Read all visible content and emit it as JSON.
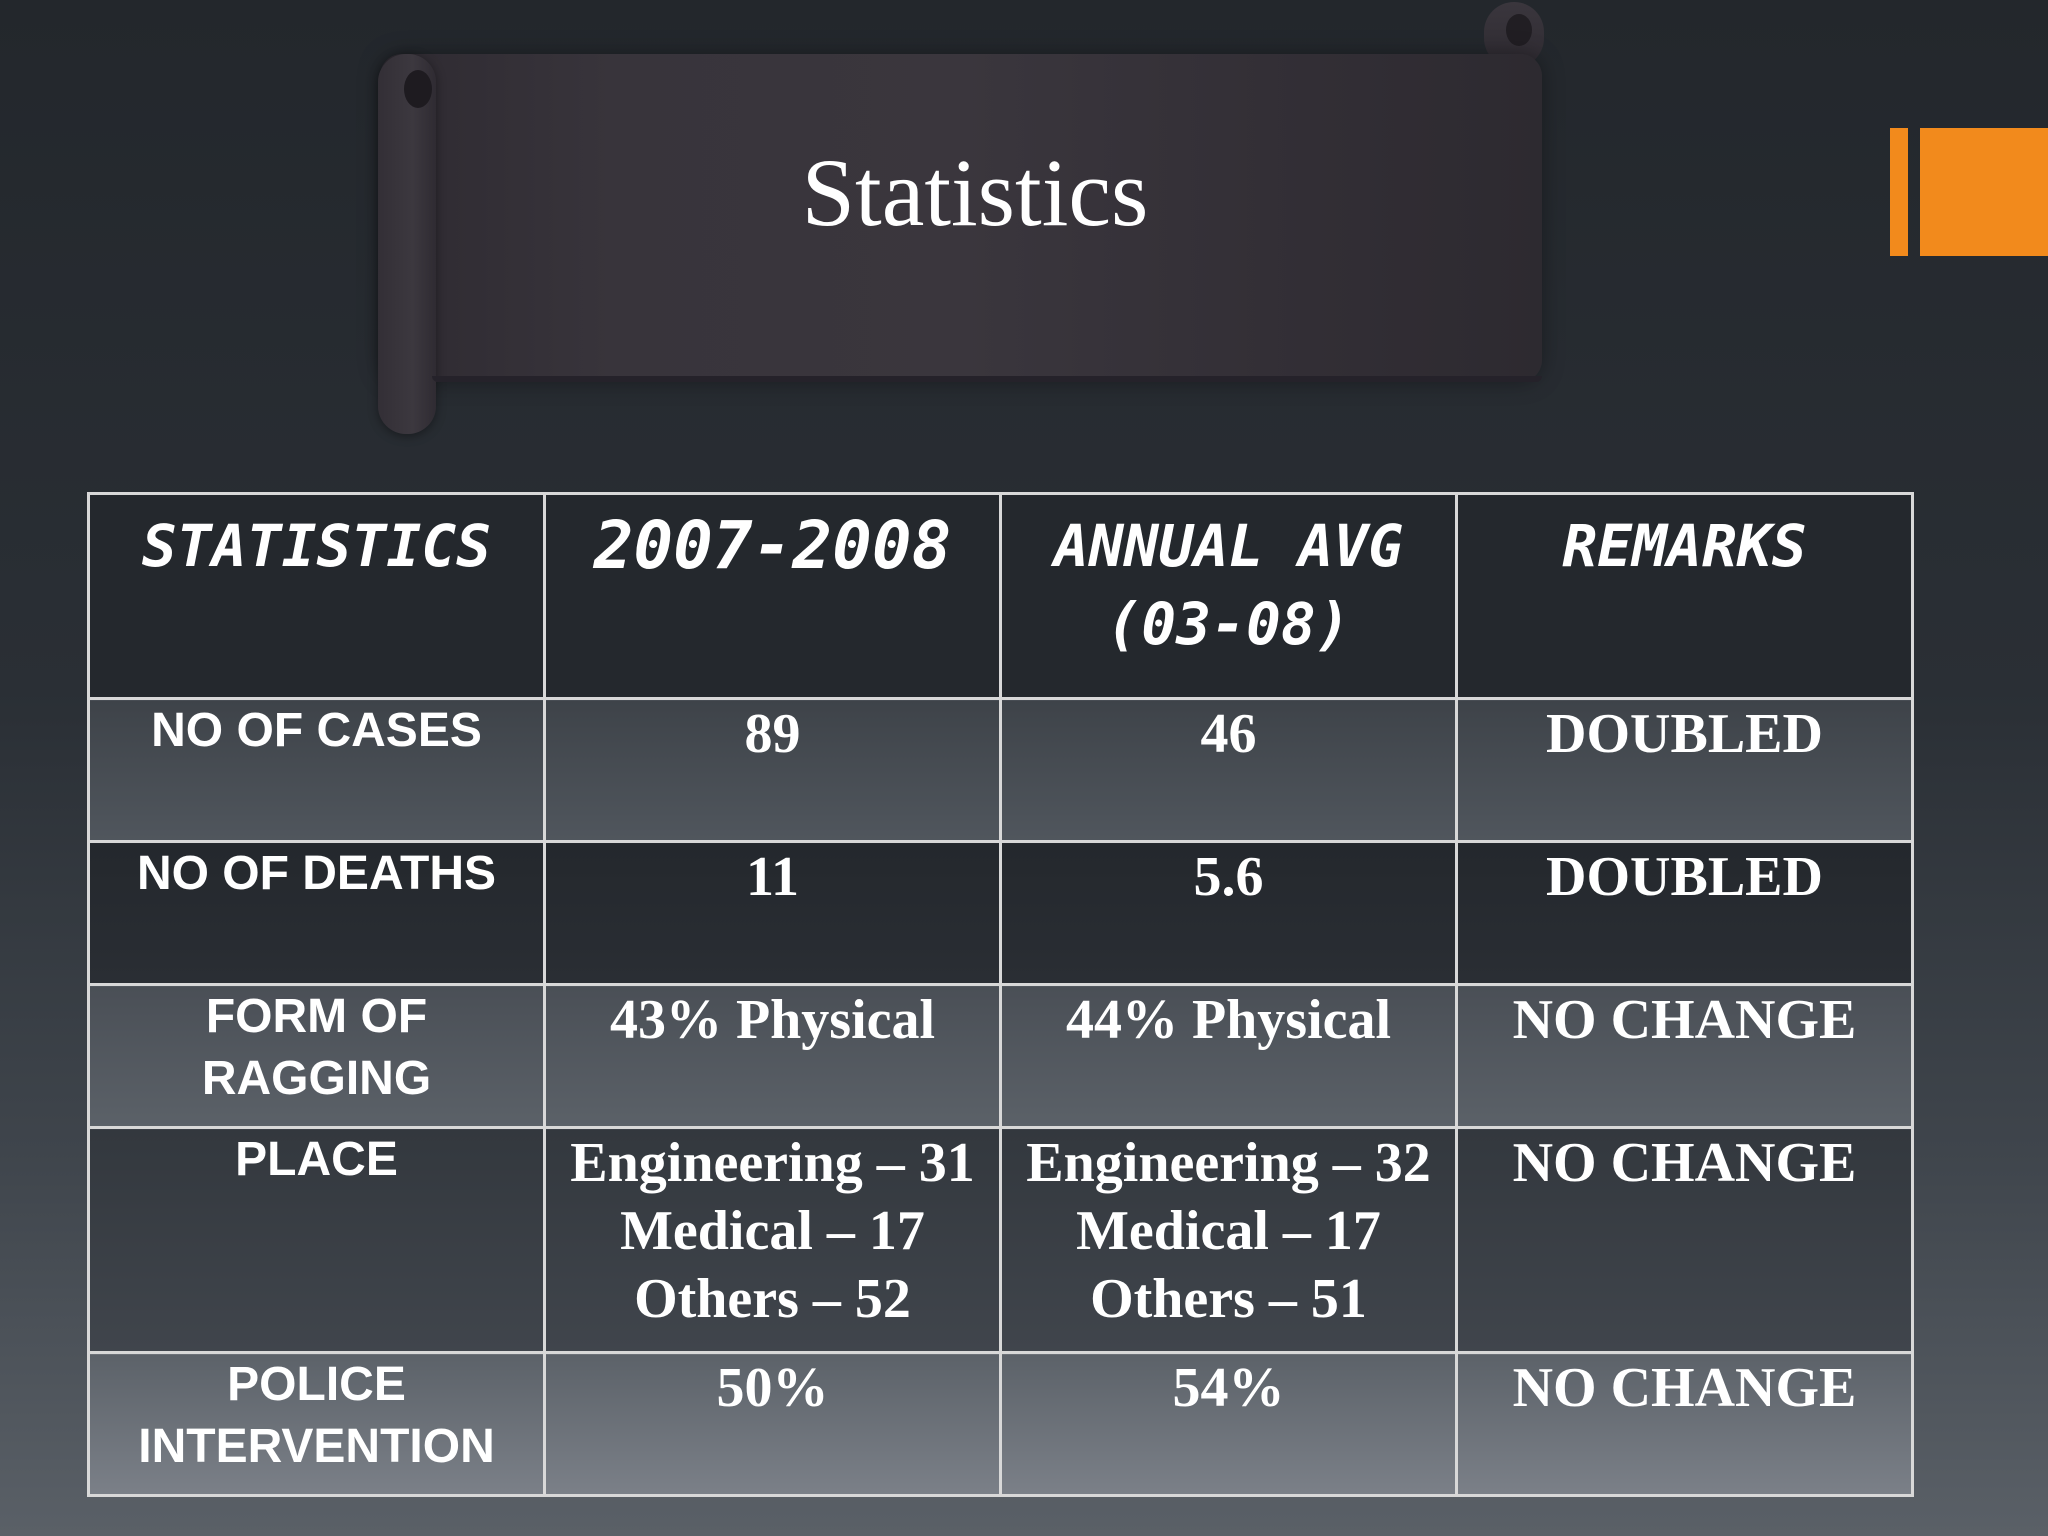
{
  "slide": {
    "title": "Statistics"
  },
  "table": {
    "headers": [
      {
        "line1": "STATISTICS",
        "line2": ""
      },
      {
        "line1": "2007-2008",
        "line2": ""
      },
      {
        "line1": "ANNUAL AVG",
        "line2": "(03-08)"
      },
      {
        "line1": "REMARKS",
        "line2": ""
      }
    ],
    "rows": [
      {
        "label": [
          "NO OF CASES"
        ],
        "year": [
          "89"
        ],
        "avg": [
          "46"
        ],
        "remarks": "DOUBLED"
      },
      {
        "label": [
          "NO OF DEATHS"
        ],
        "year": [
          "11"
        ],
        "avg": [
          "5.6"
        ],
        "remarks": "DOUBLED"
      },
      {
        "label": [
          "FORM OF",
          "RAGGING"
        ],
        "year": [
          "43% Physical"
        ],
        "avg": [
          "44% Physical"
        ],
        "remarks": "NO CHANGE"
      },
      {
        "label": [
          "PLACE"
        ],
        "year": [
          "Engineering – 31",
          "Medical – 17",
          "Others – 52"
        ],
        "avg": [
          "Engineering – 32",
          "Medical – 17",
          "Others – 51"
        ],
        "remarks": "NO CHANGE"
      },
      {
        "label": [
          "POLICE",
          "INTERVENTION"
        ],
        "year": [
          "50%"
        ],
        "avg": [
          "54%"
        ],
        "remarks": "NO CHANGE"
      }
    ]
  },
  "colors": {
    "accent": "#f28a1c",
    "background_top": "#23272c",
    "background_bottom": "#5a6067",
    "table_border": "#d8d8d8",
    "text": "#ffffff"
  }
}
